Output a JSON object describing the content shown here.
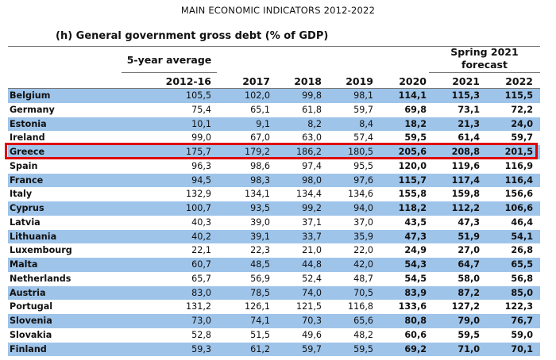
{
  "document_title": "MAIN ECONOMIC INDICATORS 2012-2022",
  "table_title": "(h) General government gross debt (% of GDP)",
  "header": {
    "average_label": "5-year average",
    "forecast_label_line1": "Spring 2021",
    "forecast_label_line2": "forecast",
    "years": [
      "2012-16",
      "2017",
      "2018",
      "2019",
      "2020",
      "2021",
      "2022"
    ]
  },
  "highlighted_country": "Greece",
  "highlight_color": "#e00000",
  "row_shading_color": "#9ec4ea",
  "rows": [
    {
      "country": "Belgium",
      "values": [
        "105,5",
        "102,0",
        "99,8",
        "98,1",
        "114,1",
        "115,3",
        "115,5"
      ]
    },
    {
      "country": "Germany",
      "values": [
        "75,4",
        "65,1",
        "61,8",
        "59,7",
        "69,8",
        "73,1",
        "72,2"
      ]
    },
    {
      "country": "Estonia",
      "values": [
        "10,1",
        "9,1",
        "8,2",
        "8,4",
        "18,2",
        "21,3",
        "24,0"
      ]
    },
    {
      "country": "Ireland",
      "values": [
        "99,0",
        "67,0",
        "63,0",
        "57,4",
        "59,5",
        "61,4",
        "59,7"
      ]
    },
    {
      "country": "Greece",
      "values": [
        "175,7",
        "179,2",
        "186,2",
        "180,5",
        "205,6",
        "208,8",
        "201,5"
      ]
    },
    {
      "country": "Spain",
      "values": [
        "96,3",
        "98,6",
        "97,4",
        "95,5",
        "120,0",
        "119,6",
        "116,9"
      ]
    },
    {
      "country": "France",
      "values": [
        "94,5",
        "98,3",
        "98,0",
        "97,6",
        "115,7",
        "117,4",
        "116,4"
      ]
    },
    {
      "country": "Italy",
      "values": [
        "132,9",
        "134,1",
        "134,4",
        "134,6",
        "155,8",
        "159,8",
        "156,6"
      ]
    },
    {
      "country": "Cyprus",
      "values": [
        "100,7",
        "93,5",
        "99,2",
        "94,0",
        "118,2",
        "112,2",
        "106,6"
      ]
    },
    {
      "country": "Latvia",
      "values": [
        "40,3",
        "39,0",
        "37,1",
        "37,0",
        "43,5",
        "47,3",
        "46,4"
      ]
    },
    {
      "country": "Lithuania",
      "values": [
        "40,2",
        "39,1",
        "33,7",
        "35,9",
        "47,3",
        "51,9",
        "54,1"
      ]
    },
    {
      "country": "Luxembourg",
      "values": [
        "22,1",
        "22,3",
        "21,0",
        "22,0",
        "24,9",
        "27,0",
        "26,8"
      ]
    },
    {
      "country": "Malta",
      "values": [
        "60,7",
        "48,5",
        "44,8",
        "42,0",
        "54,3",
        "64,7",
        "65,5"
      ]
    },
    {
      "country": "Netherlands",
      "values": [
        "65,7",
        "56,9",
        "52,4",
        "48,7",
        "54,5",
        "58,0",
        "56,8"
      ]
    },
    {
      "country": "Austria",
      "values": [
        "83,0",
        "78,5",
        "74,0",
        "70,5",
        "83,9",
        "87,2",
        "85,0"
      ]
    },
    {
      "country": "Portugal",
      "values": [
        "131,2",
        "126,1",
        "121,5",
        "116,8",
        "133,6",
        "127,2",
        "122,3"
      ]
    },
    {
      "country": "Slovenia",
      "values": [
        "73,0",
        "74,1",
        "70,3",
        "65,6",
        "80,8",
        "79,0",
        "76,7"
      ]
    },
    {
      "country": "Slovakia",
      "values": [
        "52,8",
        "51,5",
        "49,6",
        "48,2",
        "60,6",
        "59,5",
        "59,0"
      ]
    },
    {
      "country": "Finland",
      "values": [
        "59,3",
        "61,2",
        "59,7",
        "59,5",
        "69,2",
        "71,0",
        "70,1"
      ]
    }
  ]
}
